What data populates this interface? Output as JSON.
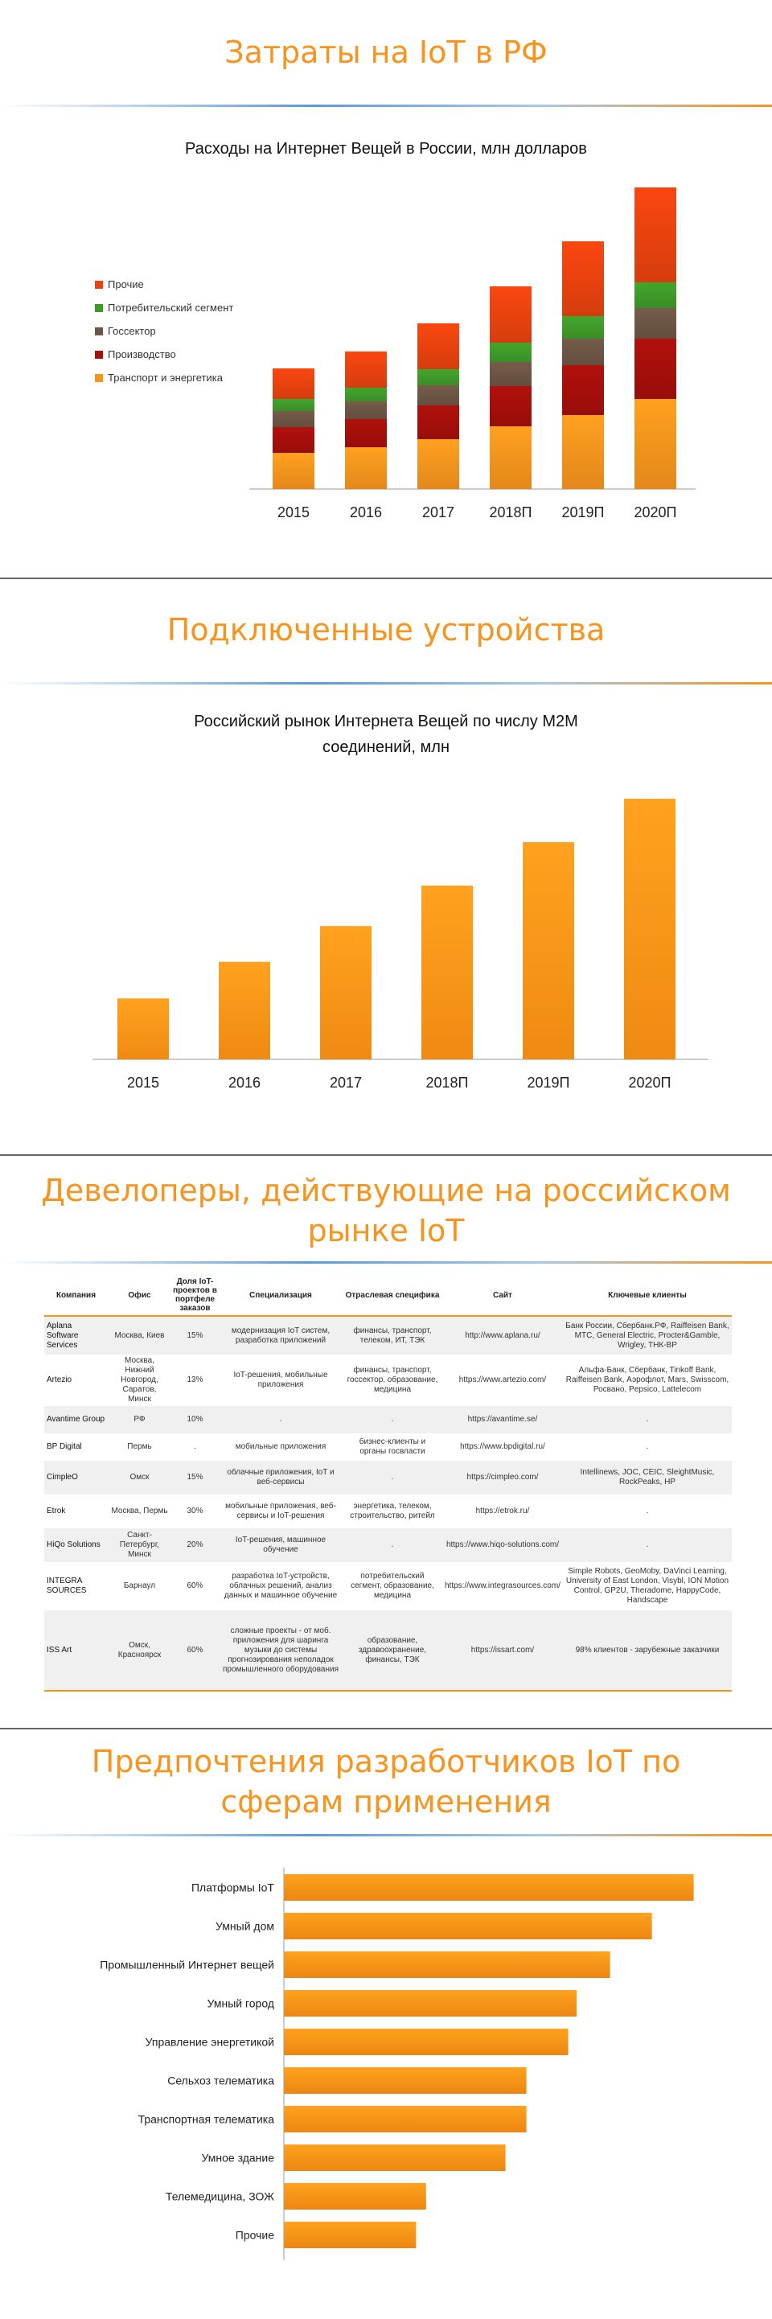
{
  "section1": {
    "title": "Затраты на IoT в РФ",
    "chart_data": {
      "type": "bar",
      "stacked": true,
      "title": "Расходы на Интернет Вещей в России, млн долларов",
      "categories": [
        "2015",
        "2016",
        "2017",
        "2018П",
        "2019П",
        "2020П"
      ],
      "series": [
        {
          "name": "Транспорт и энергетика",
          "color": "#f7941d",
          "values": [
            45,
            52,
            62,
            78,
            92,
            112
          ]
        },
        {
          "name": "Производство",
          "color": "#a50f0a",
          "values": [
            32,
            35,
            42,
            50,
            62,
            75
          ]
        },
        {
          "name": "Госсектор",
          "color": "#6d5544",
          "values": [
            20,
            22,
            25,
            30,
            33,
            38
          ]
        },
        {
          "name": "Потребительский сегмент",
          "color": "#3f9a2a",
          "values": [
            15,
            17,
            20,
            24,
            28,
            32
          ]
        },
        {
          "name": "Прочие",
          "color": "#e8420f",
          "values": [
            38,
            45,
            57,
            70,
            93,
            118
          ]
        }
      ],
      "legend_order": [
        "Прочие",
        "Потребительский сегмент",
        "Госсектор",
        "Производство",
        "Транспорт и энергетика"
      ],
      "legend_position": "left",
      "ylim": [
        0,
        370
      ],
      "grid": false
    }
  },
  "section2": {
    "title": "Подключенные устройства",
    "chart_data": {
      "type": "bar",
      "title": "Российский рынок Интернета Вещей по числу M2M соединений, млн",
      "title_line1": "Российский рынок Интернета Вещей по числу M2M",
      "title_line2": "соединений, млн",
      "categories": [
        "2015",
        "2016",
        "2017",
        "2018П",
        "2019П",
        "2020П"
      ],
      "values": [
        80,
        128,
        175,
        228,
        285,
        342
      ],
      "color": "#f7941d",
      "ylim": [
        0,
        380
      ],
      "grid": false
    }
  },
  "section3": {
    "title_line1": "Девелоперы, действующие на российском",
    "title_line2": "рынке IoT",
    "table": {
      "headers": [
        "Компания",
        "Офис",
        "Доля IoT-проектов в портфеле заказов",
        "Специализация",
        "Отраслевая специфика",
        "Сайт",
        "Ключевые клиенты"
      ],
      "rows": [
        [
          "Aplana Software Services",
          "Москва, Киев",
          "15%",
          "модернизация IoT систем, разработка приложений",
          "финансы, транспорт, телеком, ИТ, ТЭК",
          "http://www.aplana.ru/",
          "Банк России, Сбербанк.РФ, Raiffeisen Bank, МТС, General Electric, Procter&Gamble, Wrigley, ТНК-ВР"
        ],
        [
          "Artezio",
          "Москва, Нижний Новгород, Саратов, Минск",
          "13%",
          "IoT-решения, мобильные приложения",
          "финансы, транспорт, госсектор, образование, медицина",
          "https://www.artezio.com/",
          "Альфа-Банк, Сбербанк, Tinkoff Bank, Raiffeisen Bank, Аэрофлот, Mars, Swisscom, Росвано, Pepsico, Lattelecom"
        ],
        [
          "Avantime Group",
          "РФ",
          "10%",
          ".",
          ".",
          "https://avantime.se/",
          "."
        ],
        [
          "BP Digital",
          "Пермь",
          ".",
          "мобильные приложения",
          "бизнес-клиенты и органы госвласти",
          "https://www.bpdigital.ru/",
          "."
        ],
        [
          "CimpleO",
          "Омск",
          "15%",
          "облачные приложения, IoT и веб-сервисы",
          ".",
          "https://cimpleo.com/",
          "Intellinews, JOC, CEIC, SleightMusic, RockPeaks, HP"
        ],
        [
          "Etrok",
          "Москва, Пермь",
          "30%",
          "мобильные приложения, веб-сервисы и IoT-решения",
          "энергетика, телеком, строительство, ритейл",
          "https://etrok.ru/",
          "."
        ],
        [
          "HiQo Solutions",
          "Санкт-Петербург, Минск",
          "20%",
          "IoT-решения, машинное обучение",
          ".",
          "https://www.hiqo-solutions.com/",
          "."
        ],
        [
          "INTEGRA SOURCES",
          "Барнаул",
          "60%",
          "разработка IoT-устройств, облачных решений, анализ данных и машинное обучение",
          "потребительский сегмент, образование, медицина",
          "https://www.integrasources.com/",
          "Simple Robots, GeoMoby, DaVinci Learning, University of East London, Visybl, ION Motion Control, GP2U, Theradome, HappyCode, Handscape"
        ],
        [
          "ISS Art",
          "Омск, Красноярск",
          "60%",
          "сложные проекты - от моб. приложения для шаринга музыки до системы прогнозирования неполадок промышленного оборудования",
          "образование, здравоохранение, финансы, ТЭК",
          "https://issart.com/",
          "98% клиентов - зарубежные заказчики"
        ]
      ]
    }
  },
  "section4": {
    "title_line1": "Предпочтения разработчиков IoT по",
    "title_line2": "сферам применения",
    "chart_data": {
      "type": "bar",
      "orientation": "horizontal",
      "categories": [
        "Платформы IoT",
        "Умный дом",
        "Промышленный Интернет вещей",
        "Умный город",
        "Управление энергетикой",
        "Сельхоз телематика",
        "Транспортная телематика",
        "Умное здание",
        "Телемедицина, ЗОЖ",
        "Прочие"
      ],
      "values": [
        49,
        44,
        39,
        35,
        34,
        29,
        29,
        26.5,
        17,
        15.8
      ],
      "color": "#f7941d",
      "xlim": [
        0,
        50
      ],
      "grid": false
    }
  }
}
